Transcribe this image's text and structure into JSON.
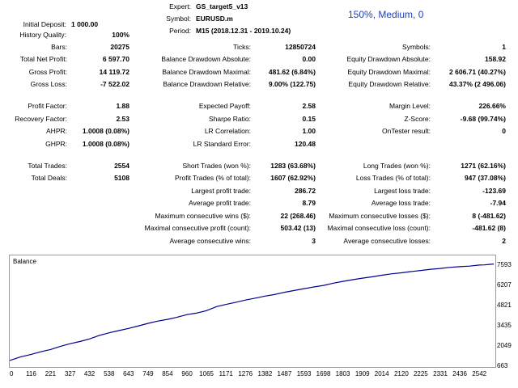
{
  "header": {
    "expert_label": "Expert:",
    "expert_value": "GS_target5_v13",
    "symbol_label": "Symbol:",
    "symbol_value": "EURUSD.m",
    "period_label": "Period:",
    "period_value": "M15 (2018.12.31 - 2019.10.24)",
    "quality_text": "150%, Medium, 0",
    "initial_deposit_label": "Initial Deposit:",
    "initial_deposit_value": "1 000.00",
    "history_quality_label": "History Quality:",
    "history_quality_value": "100%"
  },
  "stats": {
    "bars_label": "Bars:",
    "bars_value": "20275",
    "ticks_label": "Ticks:",
    "ticks_value": "12850724",
    "symbols_label": "Symbols:",
    "symbols_value": "1",
    "net_profit_label": "Total Net Profit:",
    "net_profit_value": "6 597.70",
    "bal_dd_abs_label": "Balance Drawdown Absolute:",
    "bal_dd_abs_value": "0.00",
    "eq_dd_abs_label": "Equity Drawdown Absolute:",
    "eq_dd_abs_value": "158.92",
    "gross_profit_label": "Gross Profit:",
    "gross_profit_value": "14 119.72",
    "bal_dd_max_label": "Balance Drawdown Maximal:",
    "bal_dd_max_value": "481.62 (6.84%)",
    "eq_dd_max_label": "Equity Drawdown Maximal:",
    "eq_dd_max_value": "2 606.71 (40.27%)",
    "gross_loss_label": "Gross Loss:",
    "gross_loss_value": "-7 522.02",
    "bal_dd_rel_label": "Balance Drawdown Relative:",
    "bal_dd_rel_value": "9.00% (122.75)",
    "eq_dd_rel_label": "Equity Drawdown Relative:",
    "eq_dd_rel_value": "43.37% (2 496.06)",
    "profit_factor_label": "Profit Factor:",
    "profit_factor_value": "1.88",
    "expected_payoff_label": "Expected Payoff:",
    "expected_payoff_value": "2.58",
    "margin_level_label": "Margin Level:",
    "margin_level_value": "226.66%",
    "recovery_factor_label": "Recovery Factor:",
    "recovery_factor_value": "2.53",
    "sharpe_label": "Sharpe Ratio:",
    "sharpe_value": "0.15",
    "zscore_label": "Z-Score:",
    "zscore_value": "-9.68 (99.74%)",
    "ahpr_label": "AHPR:",
    "ahpr_value": "1.0008 (0.08%)",
    "lr_corr_label": "LR Correlation:",
    "lr_corr_value": "1.00",
    "ontester_label": "OnTester result:",
    "ontester_value": "0",
    "ghpr_label": "GHPR:",
    "ghpr_value": "1.0008 (0.08%)",
    "lr_std_label": "LR Standard Error:",
    "lr_std_value": "120.48",
    "total_trades_label": "Total Trades:",
    "total_trades_value": "2554",
    "short_trades_label": "Short Trades (won %):",
    "short_trades_value": "1283 (63.68%)",
    "long_trades_label": "Long Trades (won %):",
    "long_trades_value": "1271 (62.16%)",
    "total_deals_label": "Total Deals:",
    "total_deals_value": "5108",
    "profit_trades_label": "Profit Trades (% of total):",
    "profit_trades_value": "1607 (62.92%)",
    "loss_trades_label": "Loss Trades (% of total):",
    "loss_trades_value": "947 (37.08%)",
    "largest_profit_label": "Largest profit trade:",
    "largest_profit_value": "286.72",
    "largest_loss_label": "Largest loss trade:",
    "largest_loss_value": "-123.69",
    "avg_profit_label": "Average profit trade:",
    "avg_profit_value": "8.79",
    "avg_loss_label": "Average loss trade:",
    "avg_loss_value": "-7.94",
    "max_cons_wins_label": "Maximum consecutive wins ($):",
    "max_cons_wins_value": "22 (268.46)",
    "max_cons_losses_label": "Maximum consecutive losses ($):",
    "max_cons_losses_value": "8 (-481.62)",
    "maximal_cons_profit_label": "Maximal consecutive profit (count):",
    "maximal_cons_profit_value": "503.42 (13)",
    "maximal_cons_loss_label": "Maximal consecutive loss (count):",
    "maximal_cons_loss_value": "-481.62 (8)",
    "avg_cons_wins_label": "Average consecutive wins:",
    "avg_cons_wins_value": "3",
    "avg_cons_losses_label": "Average consecutive losses:",
    "avg_cons_losses_value": "2"
  },
  "chart_data": {
    "type": "line",
    "title": "Balance",
    "xlabel": "",
    "ylabel": "",
    "x_ticks": [
      "0",
      "116",
      "221",
      "327",
      "432",
      "538",
      "643",
      "749",
      "854",
      "960",
      "1065",
      "1171",
      "1276",
      "1382",
      "1487",
      "1593",
      "1698",
      "1803",
      "1909",
      "2014",
      "2120",
      "2225",
      "2331",
      "2436",
      "2542"
    ],
    "y_ticks": [
      "663",
      "2049",
      "3435",
      "4821",
      "6207",
      "7593"
    ],
    "xlim": [
      0,
      2620
    ],
    "ylim": [
      663,
      8100
    ],
    "grid": false,
    "line_color": "#00008b",
    "series": [
      {
        "x": [
          0,
          60,
          116,
          170,
          221,
          270,
          327,
          380,
          432,
          480,
          538,
          590,
          643,
          700,
          749,
          800,
          854,
          900,
          960,
          1010,
          1065,
          1120,
          1171,
          1220,
          1276,
          1330,
          1382,
          1430,
          1487,
          1540,
          1593,
          1650,
          1698,
          1750,
          1803,
          1860,
          1909,
          1960,
          2014,
          2070,
          2120,
          2170,
          2225,
          2280,
          2331,
          2380,
          2436,
          2490,
          2542,
          2570,
          2595,
          2620
        ],
        "y": [
          1000,
          1250,
          1420,
          1600,
          1750,
          1950,
          2150,
          2300,
          2480,
          2700,
          2900,
          3050,
          3200,
          3380,
          3550,
          3700,
          3820,
          3950,
          4150,
          4250,
          4420,
          4700,
          4850,
          4980,
          5150,
          5280,
          5420,
          5520,
          5680,
          5800,
          5930,
          6050,
          6150,
          6300,
          6430,
          6550,
          6650,
          6740,
          6850,
          6950,
          7020,
          7100,
          7180,
          7260,
          7320,
          7390,
          7440,
          7480,
          7550,
          7560,
          7593,
          7620
        ]
      }
    ]
  }
}
